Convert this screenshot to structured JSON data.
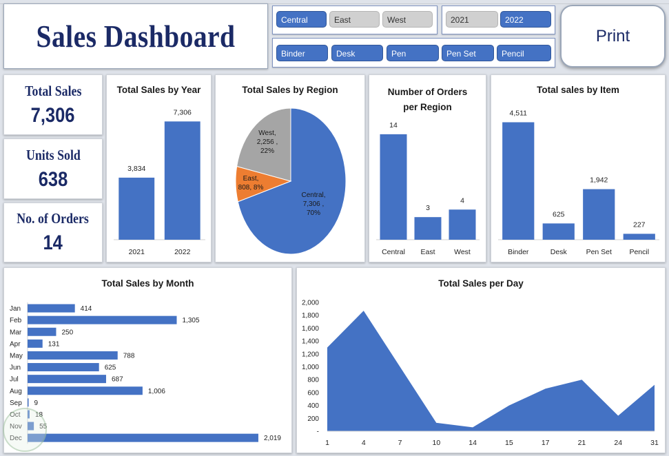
{
  "header": {
    "title": "Sales Dashboard",
    "print_label": "Print"
  },
  "slicers": {
    "region": [
      {
        "label": "Central",
        "selected": true
      },
      {
        "label": "East",
        "selected": false
      },
      {
        "label": "West",
        "selected": false
      }
    ],
    "year": [
      {
        "label": "2021",
        "selected": false
      },
      {
        "label": "2022",
        "selected": true
      }
    ],
    "item": [
      {
        "label": "Binder",
        "selected": true
      },
      {
        "label": "Desk",
        "selected": true
      },
      {
        "label": "Pen",
        "selected": true
      },
      {
        "label": "Pen Set",
        "selected": true
      },
      {
        "label": "Pencil",
        "selected": true
      }
    ]
  },
  "kpis": {
    "total_sales": {
      "label": "Total Sales",
      "value": "7,306"
    },
    "units_sold": {
      "label": "Units Sold",
      "value": "638"
    },
    "orders": {
      "label": "No. of Orders",
      "value": "14"
    }
  },
  "colors": {
    "primary": "#4472c4",
    "east": "#ed7d31",
    "west": "#a5a5a5",
    "title": "#1b2a66"
  },
  "chart_data": [
    {
      "id": "by_year",
      "type": "bar",
      "title": "Total Sales by Year",
      "categories": [
        "2021",
        "2022"
      ],
      "values": [
        3834,
        7306
      ],
      "value_labels": [
        "3,834",
        "7,306"
      ],
      "ylim": [
        0,
        8000
      ]
    },
    {
      "id": "by_region",
      "type": "pie",
      "title": "Total Sales by Region",
      "slices": [
        {
          "name": "Central",
          "value": 7306,
          "value_label": "7,306",
          "percent": "70%",
          "color": "#4472c4"
        },
        {
          "name": "East",
          "value": 808,
          "value_label": "808",
          "percent": "8%",
          "color": "#ed7d31"
        },
        {
          "name": "West",
          "value": 2256,
          "value_label": "2,256",
          "percent": "22%",
          "color": "#a5a5a5"
        }
      ]
    },
    {
      "id": "orders_region",
      "type": "bar",
      "title": "Number of Orders per Region",
      "title_lines": [
        "Number of Orders",
        "per Region"
      ],
      "categories": [
        "Central",
        "East",
        "West"
      ],
      "values": [
        14,
        3,
        4
      ],
      "value_labels": [
        "14",
        "3",
        "4"
      ],
      "ylim": [
        0,
        16
      ]
    },
    {
      "id": "by_item",
      "type": "bar",
      "title": "Total sales by Item",
      "categories": [
        "Binder",
        "Desk",
        "Pen Set",
        "Pencil"
      ],
      "values": [
        4511,
        625,
        1942,
        227
      ],
      "value_labels": [
        "4,511",
        "625",
        "1,942",
        "227"
      ],
      "ylim": [
        0,
        5000
      ]
    },
    {
      "id": "by_month",
      "type": "bar",
      "orientation": "horizontal",
      "title": "Total Sales by Month",
      "categories": [
        "Jan",
        "Feb",
        "Mar",
        "Apr",
        "May",
        "Jun",
        "Jul",
        "Aug",
        "Sep",
        "Oct",
        "Nov",
        "Dec"
      ],
      "values": [
        414,
        1305,
        250,
        131,
        788,
        625,
        687,
        1006,
        9,
        18,
        55,
        2019
      ],
      "value_labels": [
        "414",
        "1,305",
        "250",
        "131",
        "788",
        "625",
        "687",
        "1,006",
        "9",
        "18",
        "55",
        "2,019"
      ],
      "xlim": [
        0,
        2200
      ]
    },
    {
      "id": "per_day",
      "type": "area",
      "title": "Total Sales per Day",
      "x": [
        1,
        4,
        7,
        10,
        14,
        15,
        17,
        21,
        24,
        31
      ],
      "x_tick_labels": [
        "1",
        "4",
        "7",
        "10",
        "14",
        "15",
        "17",
        "21",
        "24",
        "31"
      ],
      "values": [
        1300,
        1870,
        1000,
        130,
        60,
        400,
        660,
        800,
        240,
        720
      ],
      "ylim": [
        0,
        2000
      ],
      "y_tick_labels": [
        "-",
        "200",
        "400",
        "600",
        "800",
        "1,000",
        "1,200",
        "1,400",
        "1,600",
        "1,800",
        "2,000"
      ],
      "grid": false
    }
  ]
}
